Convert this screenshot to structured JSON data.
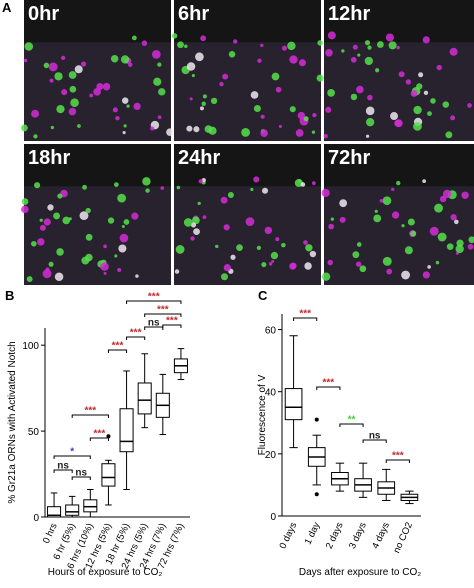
{
  "panel_a": {
    "label": "A",
    "tiles": [
      "0hr",
      "6hr",
      "12hr",
      "18hr",
      "24hr",
      "72hr"
    ]
  },
  "chart_data": [
    {
      "type": "box",
      "panel_label": "B",
      "ylabel": "% Gr21a ORNs with Activated Notch",
      "xlabel": "Hours of exposure to CO₂",
      "categories": [
        "0 hrs",
        "6 hr (5%)",
        "6 hrs (10%)",
        "12 hrs (5%)",
        "18 hr (5%)",
        "24 hrs (5%)",
        "24 hrs (7%)",
        "72 hrs (7%)"
      ],
      "boxes": [
        {
          "min": 0,
          "q1": 0,
          "median": 1,
          "q3": 6,
          "max": 14,
          "outliers": []
        },
        {
          "min": 0,
          "q1": 1,
          "median": 3,
          "q3": 7,
          "max": 12,
          "outliers": []
        },
        {
          "min": 0,
          "q1": 3,
          "median": 6,
          "q3": 10,
          "max": 16,
          "outliers": []
        },
        {
          "min": 7,
          "q1": 18,
          "median": 23,
          "q3": 31,
          "max": 33,
          "outliers": [
            47
          ]
        },
        {
          "min": 16,
          "q1": 38,
          "median": 44,
          "q3": 63,
          "max": 85,
          "outliers": []
        },
        {
          "min": 52,
          "q1": 60,
          "median": 68,
          "q3": 78,
          "max": 95,
          "outliers": []
        },
        {
          "min": 48,
          "q1": 58,
          "median": 65,
          "q3": 72,
          "max": 83,
          "outliers": []
        },
        {
          "min": 80,
          "q1": 84,
          "median": 88,
          "q3": 92,
          "max": 98,
          "outliers": []
        }
      ],
      "ylim": [
        0,
        110
      ],
      "yticks": [
        0,
        50,
        100
      ],
      "annotations": [
        {
          "text": "***",
          "color": "#c0272d"
        },
        {
          "text": "***",
          "color": "#c0272d"
        },
        {
          "text": "ns",
          "color": "#222222"
        },
        {
          "text": "***",
          "color": "#c0272d"
        },
        {
          "text": "***",
          "color": "#c0272d"
        },
        {
          "text": "***",
          "color": "#c0272d"
        },
        {
          "text": "***",
          "color": "#c0272d"
        },
        {
          "text": "***",
          "color": "#c0272d"
        },
        {
          "text": "*",
          "color": "#2b3fc4"
        },
        {
          "text": "ns",
          "color": "#222222"
        },
        {
          "text": "ns",
          "color": "#222222"
        }
      ]
    },
    {
      "type": "box",
      "panel_label": "C",
      "ylabel": "Fluorescence of V",
      "xlabel": "Days after exposure to CO₂",
      "categories": [
        "0 days",
        "1 day",
        "2 days",
        "3 days",
        "4 days",
        "no CO2"
      ],
      "boxes": [
        {
          "min": 22,
          "q1": 31,
          "median": 35,
          "q3": 41,
          "max": 58,
          "outliers": []
        },
        {
          "min": 10,
          "q1": 16,
          "median": 19,
          "q3": 22,
          "max": 26,
          "outliers": [
            31,
            7
          ]
        },
        {
          "min": 8,
          "q1": 10,
          "median": 12,
          "q3": 14,
          "max": 17,
          "outliers": []
        },
        {
          "min": 6,
          "q1": 8,
          "median": 10,
          "q3": 12,
          "max": 17,
          "outliers": []
        },
        {
          "min": 5,
          "q1": 7,
          "median": 9,
          "q3": 11,
          "max": 15,
          "outliers": []
        },
        {
          "min": 4,
          "q1": 5,
          "median": 6,
          "q3": 7,
          "max": 8,
          "outliers": []
        }
      ],
      "ylim": [
        0,
        65
      ],
      "yticks": [
        0,
        20,
        40,
        60
      ],
      "annotations": [
        {
          "text": "***",
          "color": "#c0272d"
        },
        {
          "text": "***",
          "color": "#c0272d"
        },
        {
          "text": "**",
          "color": "#3ecf3e"
        },
        {
          "text": "ns",
          "color": "#222222"
        },
        {
          "text": "***",
          "color": "#c0272d"
        }
      ]
    }
  ]
}
